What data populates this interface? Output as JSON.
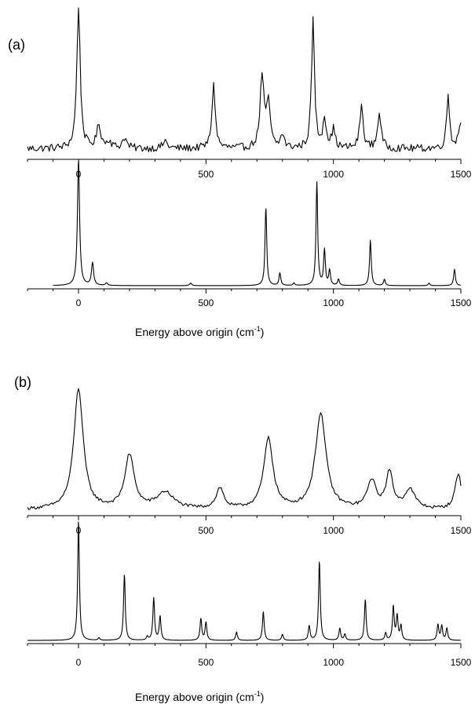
{
  "chart_data": {
    "type": "line",
    "x_axis": {
      "label_main": "Energy above origin (cm",
      "label_sup": "-1",
      "label_close": ")",
      "xlim": [
        -200,
        1500
      ],
      "major_ticks": [
        0,
        500,
        1000,
        1500
      ],
      "tick_labels": [
        "0",
        "500",
        "1000",
        "1500"
      ],
      "minor_step": 100
    },
    "panels": [
      {
        "label": "(a)",
        "xlabel_shown": true,
        "series": [
          {
            "kind": "experimental",
            "baseline": 0.05,
            "noise": 0.025,
            "x_start": -200,
            "x_end": 1500,
            "peaks": [
              {
                "x": 0,
                "h": 0.95,
                "w": 8
              },
              {
                "x": 80,
                "h": 0.15,
                "w": 10
              },
              {
                "x": 120,
                "h": 0.05,
                "w": 10
              },
              {
                "x": 180,
                "h": 0.07,
                "w": 10
              },
              {
                "x": 340,
                "h": 0.05,
                "w": 10
              },
              {
                "x": 530,
                "h": 0.42,
                "w": 8
              },
              {
                "x": 720,
                "h": 0.48,
                "w": 9
              },
              {
                "x": 745,
                "h": 0.3,
                "w": 8
              },
              {
                "x": 800,
                "h": 0.09,
                "w": 8
              },
              {
                "x": 920,
                "h": 0.85,
                "w": 7
              },
              {
                "x": 965,
                "h": 0.2,
                "w": 8
              },
              {
                "x": 1000,
                "h": 0.12,
                "w": 8
              },
              {
                "x": 1110,
                "h": 0.28,
                "w": 8
              },
              {
                "x": 1180,
                "h": 0.24,
                "w": 8
              },
              {
                "x": 1450,
                "h": 0.35,
                "w": 7
              },
              {
                "x": 1500,
                "h": 0.18,
                "w": 10
              }
            ]
          },
          {
            "kind": "simulated",
            "baseline": 0.0,
            "noise": 0,
            "x_start": -100,
            "x_end": 1500,
            "peaks": [
              {
                "x": 0,
                "h": 1.0,
                "w": 5
              },
              {
                "x": 55,
                "h": 0.18,
                "w": 5
              },
              {
                "x": 110,
                "h": 0.02,
                "w": 5
              },
              {
                "x": 440,
                "h": 0.02,
                "w": 5
              },
              {
                "x": 735,
                "h": 0.62,
                "w": 4
              },
              {
                "x": 790,
                "h": 0.1,
                "w": 4
              },
              {
                "x": 845,
                "h": 0.02,
                "w": 4
              },
              {
                "x": 935,
                "h": 0.82,
                "w": 4
              },
              {
                "x": 965,
                "h": 0.28,
                "w": 4
              },
              {
                "x": 985,
                "h": 0.12,
                "w": 4
              },
              {
                "x": 1020,
                "h": 0.05,
                "w": 4
              },
              {
                "x": 1145,
                "h": 0.36,
                "w": 4
              },
              {
                "x": 1200,
                "h": 0.05,
                "w": 4
              },
              {
                "x": 1375,
                "h": 0.02,
                "w": 4
              },
              {
                "x": 1475,
                "h": 0.13,
                "w": 4
              }
            ]
          }
        ]
      },
      {
        "label": "(b)",
        "xlabel_shown": true,
        "series": [
          {
            "kind": "experimental",
            "baseline": 0.02,
            "noise": 0.012,
            "x_start": -200,
            "x_end": 1500,
            "peaks": [
              {
                "x": 0,
                "h": 0.95,
                "w": 22
              },
              {
                "x": 200,
                "h": 0.42,
                "w": 22
              },
              {
                "x": 340,
                "h": 0.13,
                "w": 40
              },
              {
                "x": 555,
                "h": 0.16,
                "w": 18
              },
              {
                "x": 745,
                "h": 0.55,
                "w": 22
              },
              {
                "x": 950,
                "h": 0.75,
                "w": 25
              },
              {
                "x": 1150,
                "h": 0.22,
                "w": 20
              },
              {
                "x": 1220,
                "h": 0.28,
                "w": 16
              },
              {
                "x": 1300,
                "h": 0.15,
                "w": 25
              },
              {
                "x": 1490,
                "h": 0.28,
                "w": 15
              }
            ]
          },
          {
            "kind": "simulated",
            "baseline": 0.0,
            "noise": 0,
            "x_start": -200,
            "x_end": 1500,
            "peaks": [
              {
                "x": 0,
                "h": 1.0,
                "w": 4
              },
              {
                "x": 80,
                "h": 0.02,
                "w": 4
              },
              {
                "x": 180,
                "h": 0.55,
                "w": 4
              },
              {
                "x": 270,
                "h": 0.03,
                "w": 4
              },
              {
                "x": 295,
                "h": 0.35,
                "w": 4
              },
              {
                "x": 320,
                "h": 0.2,
                "w": 4
              },
              {
                "x": 480,
                "h": 0.18,
                "w": 4
              },
              {
                "x": 500,
                "h": 0.15,
                "w": 4
              },
              {
                "x": 620,
                "h": 0.07,
                "w": 4
              },
              {
                "x": 725,
                "h": 0.24,
                "w": 4
              },
              {
                "x": 800,
                "h": 0.05,
                "w": 4
              },
              {
                "x": 905,
                "h": 0.12,
                "w": 4
              },
              {
                "x": 945,
                "h": 0.66,
                "w": 4
              },
              {
                "x": 1025,
                "h": 0.1,
                "w": 4
              },
              {
                "x": 1045,
                "h": 0.05,
                "w": 4
              },
              {
                "x": 1125,
                "h": 0.34,
                "w": 4
              },
              {
                "x": 1205,
                "h": 0.06,
                "w": 4
              },
              {
                "x": 1235,
                "h": 0.28,
                "w": 4
              },
              {
                "x": 1250,
                "h": 0.2,
                "w": 4
              },
              {
                "x": 1265,
                "h": 0.12,
                "w": 4
              },
              {
                "x": 1410,
                "h": 0.13,
                "w": 4
              },
              {
                "x": 1425,
                "h": 0.12,
                "w": 4
              },
              {
                "x": 1445,
                "h": 0.1,
                "w": 4
              }
            ]
          }
        ]
      }
    ]
  }
}
